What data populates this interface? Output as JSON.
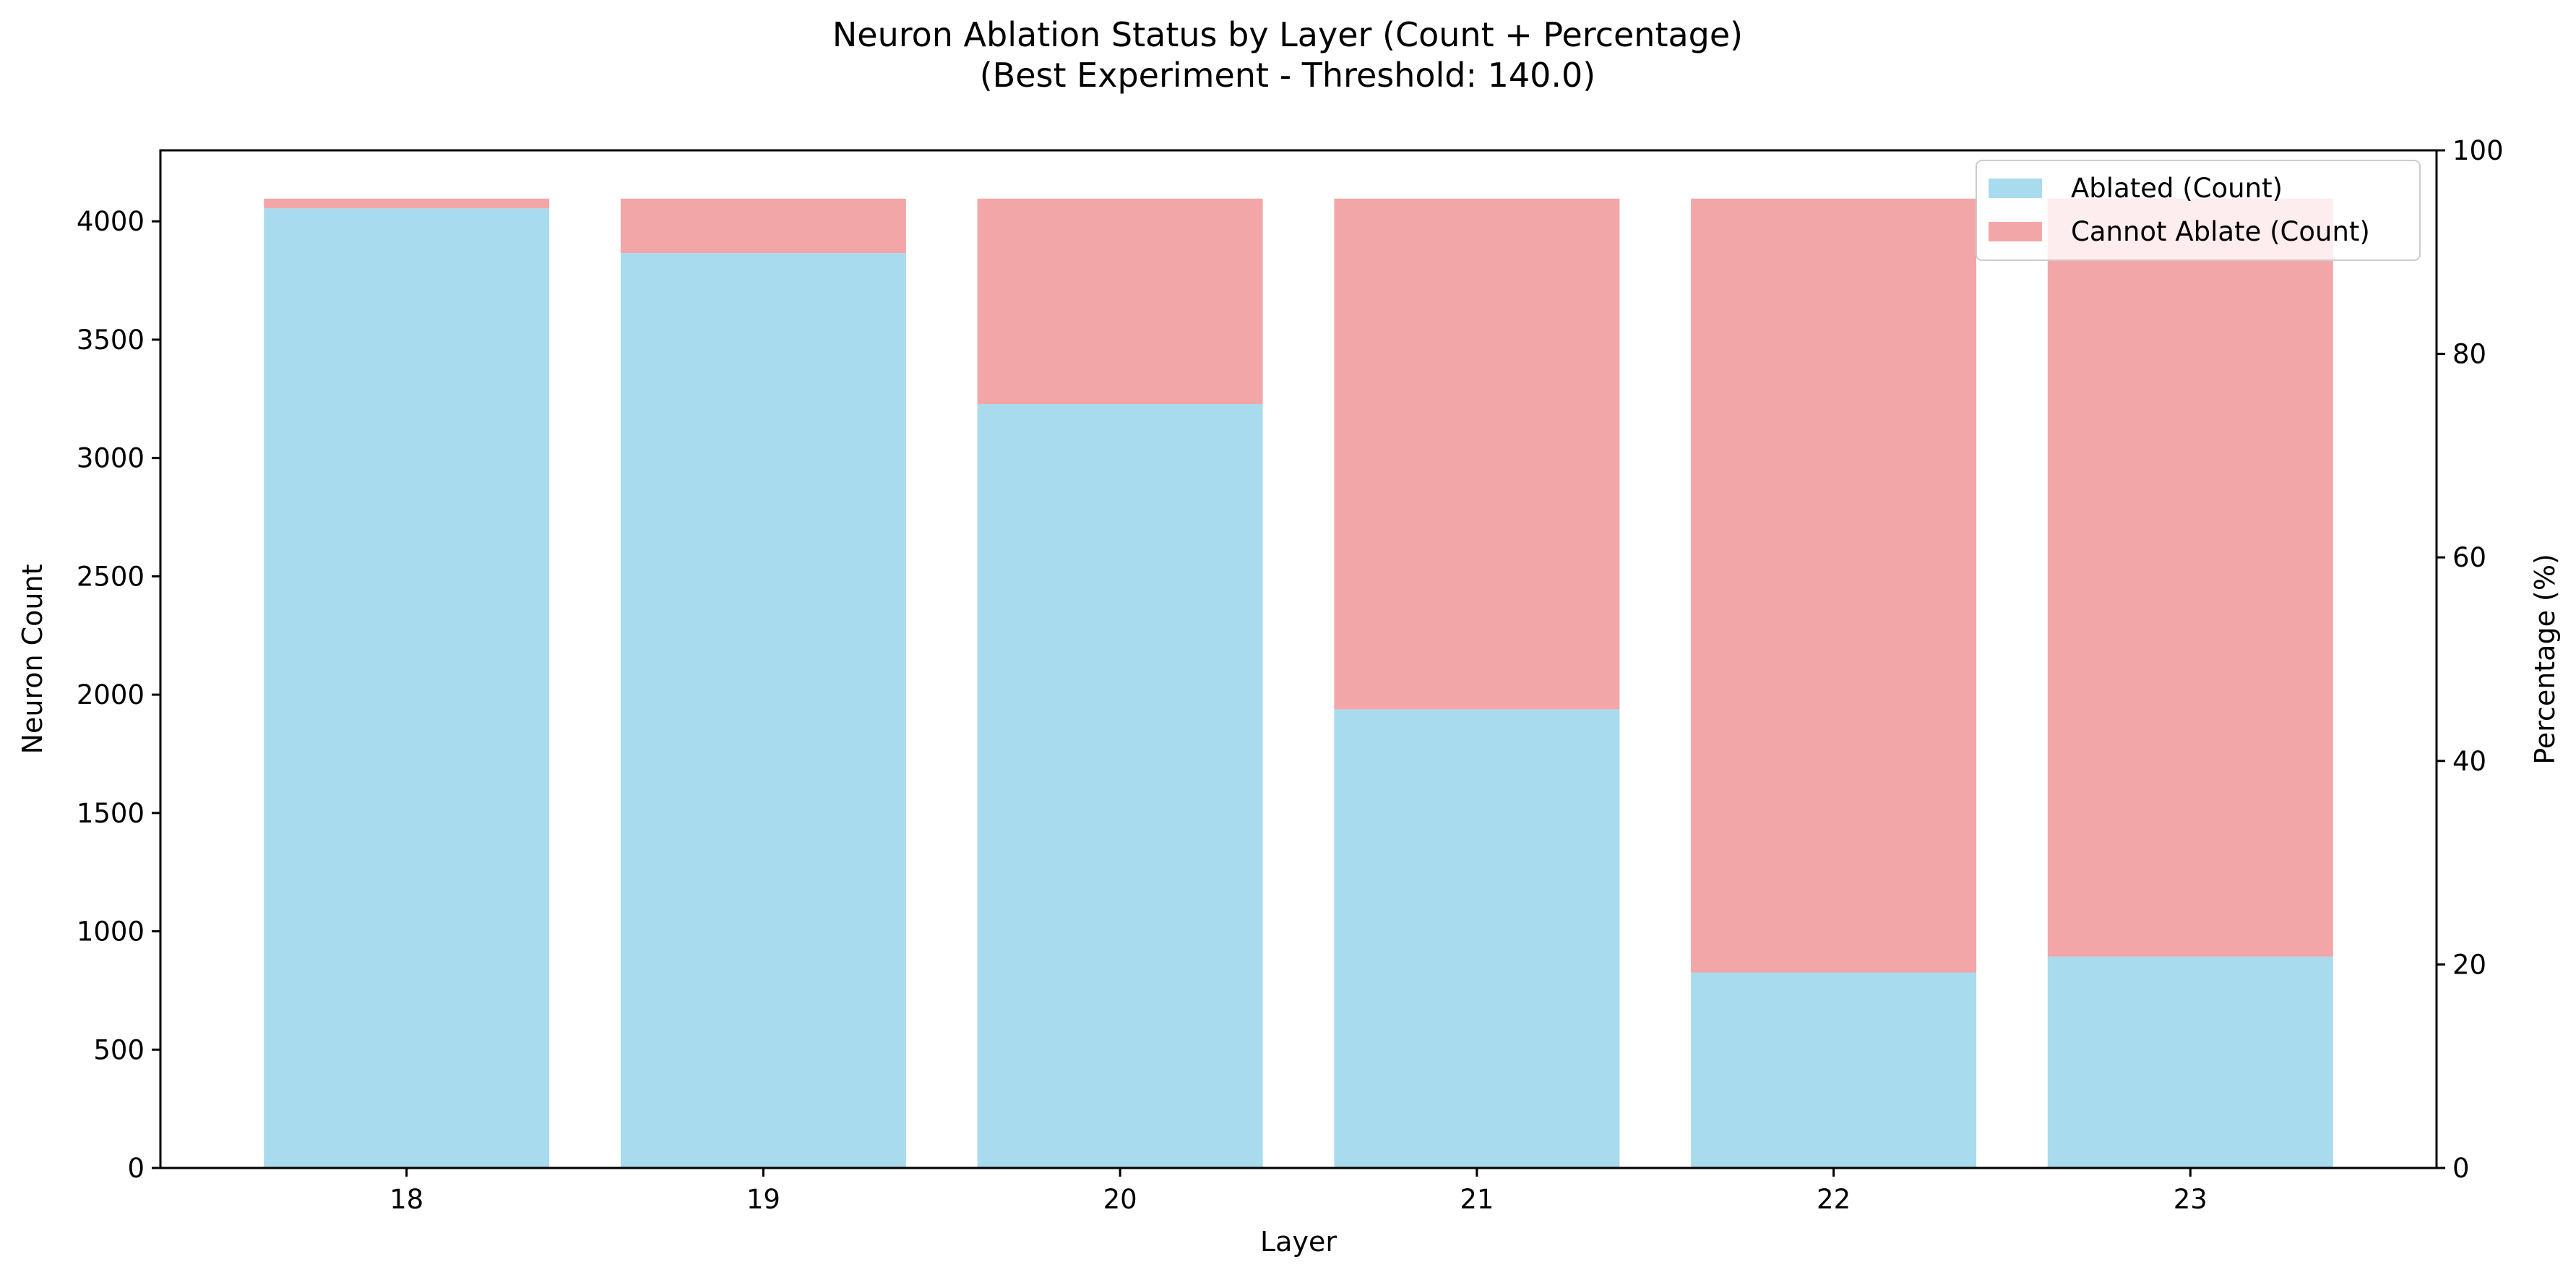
{
  "chart_data": {
    "type": "bar",
    "stacked": true,
    "title": "Neuron Ablation Status by Layer (Count + Percentage)",
    "subtitle": "(Best Experiment - Threshold: 140.0)",
    "xlabel": "Layer",
    "ylabel": "Neuron Count",
    "ylabel_right": "Percentage (%)",
    "categories": [
      "18",
      "19",
      "20",
      "21",
      "22",
      "23"
    ],
    "series": [
      {
        "name": "Ablated (Count)",
        "color": "#a8dbed",
        "values": [
          4055,
          3866,
          3228,
          1938,
          826,
          893
        ]
      },
      {
        "name": "Cannot Ablate (Count)",
        "color": "#f3a6a8",
        "values": [
          41,
          230,
          868,
          2158,
          3270,
          3203
        ]
      }
    ],
    "ylim": [
      0,
      4300
    ],
    "yticks": [
      0,
      500,
      1000,
      1500,
      2000,
      2500,
      3000,
      3500,
      4000
    ],
    "ylim_right": [
      0,
      100
    ],
    "yticks_right": [
      0,
      20,
      40,
      60,
      80,
      100
    ],
    "legend_position": "top-right",
    "grid": false
  }
}
